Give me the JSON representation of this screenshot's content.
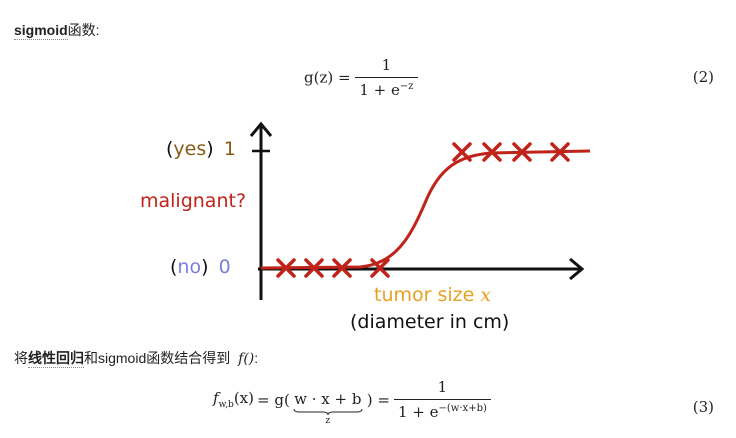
{
  "para1": {
    "bold": "sigmoid",
    "rest": "函数:"
  },
  "eq2": {
    "lhs": "g(z) =",
    "numerator": "1",
    "denominator_base": "1 + e",
    "denominator_exp": "−z",
    "number": "(2)"
  },
  "figure": {
    "yes_word": "yes",
    "yes_value": "1",
    "ylabel": "malignant?",
    "no_word": "no",
    "no_value": "0",
    "xlabel_text": "tumor size",
    "xlabel_var": "x",
    "xlabel_unit": "(diameter in cm)",
    "colors": {
      "curve": "#c0231a",
      "yes": "#8a5a14",
      "no": "#7a7fd6",
      "ylabel": "#c0231a",
      "xlabel": "#e8a020",
      "axis": "#111111"
    },
    "markers_low_count": 4,
    "markers_high_count": 4
  },
  "para2": {
    "pre": "将",
    "bold": "线性回归",
    "post": "和sigmoid函数结合得到",
    "fn": "f()",
    "colon": ":"
  },
  "eq3": {
    "lhs_f": "f",
    "lhs_sub": "w,b",
    "lhs_arg": "(x)",
    "mid": "= g(",
    "brace_content": "w · x + b",
    "brace_label": "z",
    "mid_close": ") =",
    "numerator": "1",
    "denominator_base": "1 + e",
    "denominator_exp": "−(w·x+b)",
    "number": "(3)"
  }
}
